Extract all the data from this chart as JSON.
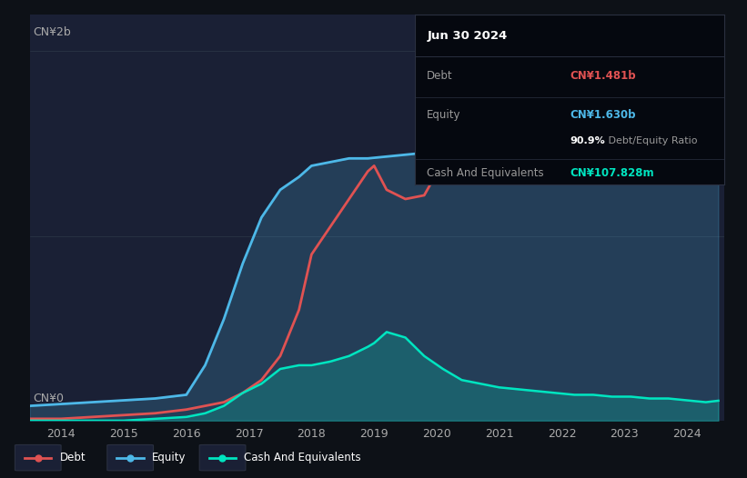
{
  "bg_color": "#0d1117",
  "plot_bg_color": "#1a2035",
  "debt_color": "#e05252",
  "equity_color": "#4db8e8",
  "cash_color": "#00e5c0",
  "debt_label": "Debt",
  "equity_label": "Equity",
  "cash_label": "Cash And Equivalents",
  "ylabel_top": "CN¥2b",
  "ylabel_bottom": "CN¥0",
  "info_box": {
    "date": "Jun 30 2024",
    "debt_val": "CN¥1.481b",
    "equity_val": "CN¥1.630b",
    "ratio_val": "90.9%",
    "ratio_label": " Debt/Equity Ratio",
    "cash_val": "CN¥107.828m"
  },
  "equity_data": {
    "x": [
      2013.5,
      2014.0,
      2014.5,
      2015.0,
      2015.5,
      2016.0,
      2016.3,
      2016.6,
      2016.9,
      2017.2,
      2017.5,
      2017.8,
      2018.0,
      2018.3,
      2018.6,
      2018.9,
      2019.2,
      2019.5,
      2019.8,
      2020.1,
      2020.4,
      2020.7,
      2021.0,
      2021.3,
      2021.6,
      2021.9,
      2022.2,
      2022.5,
      2022.8,
      2023.1,
      2023.4,
      2023.7,
      2024.0,
      2024.3,
      2024.5
    ],
    "y": [
      0.08,
      0.09,
      0.1,
      0.11,
      0.12,
      0.14,
      0.3,
      0.55,
      0.85,
      1.1,
      1.25,
      1.32,
      1.38,
      1.4,
      1.42,
      1.42,
      1.43,
      1.44,
      1.45,
      1.5,
      1.52,
      1.55,
      1.57,
      1.55,
      1.53,
      1.54,
      1.56,
      1.55,
      1.54,
      1.56,
      1.58,
      1.6,
      1.62,
      1.63,
      1.63
    ]
  },
  "debt_data": {
    "x": [
      2013.5,
      2014.0,
      2014.5,
      2015.0,
      2015.5,
      2016.0,
      2016.3,
      2016.6,
      2016.9,
      2017.2,
      2017.5,
      2017.8,
      2018.0,
      2018.3,
      2018.6,
      2018.9,
      2019.0,
      2019.2,
      2019.5,
      2019.8,
      2020.1,
      2020.4,
      2020.7,
      2021.0,
      2021.3,
      2021.6,
      2021.9,
      2022.2,
      2022.5,
      2022.8,
      2023.1,
      2023.4,
      2023.7,
      2024.0,
      2024.3,
      2024.5
    ],
    "y": [
      0.01,
      0.01,
      0.02,
      0.03,
      0.04,
      0.06,
      0.08,
      0.1,
      0.15,
      0.22,
      0.35,
      0.6,
      0.9,
      1.05,
      1.2,
      1.35,
      1.38,
      1.25,
      1.2,
      1.22,
      1.4,
      1.52,
      1.58,
      1.6,
      1.62,
      1.58,
      1.6,
      1.75,
      1.85,
      1.75,
      1.68,
      1.7,
      1.72,
      1.9,
      2.05,
      1.48
    ]
  },
  "cash_data": {
    "x": [
      2013.5,
      2014.0,
      2014.5,
      2015.0,
      2015.5,
      2016.0,
      2016.3,
      2016.6,
      2016.9,
      2017.2,
      2017.5,
      2017.8,
      2018.0,
      2018.3,
      2018.6,
      2018.9,
      2019.0,
      2019.2,
      2019.5,
      2019.8,
      2020.1,
      2020.4,
      2020.7,
      2021.0,
      2021.3,
      2021.6,
      2021.9,
      2022.2,
      2022.5,
      2022.8,
      2023.1,
      2023.4,
      2023.7,
      2024.0,
      2024.3,
      2024.5
    ],
    "y": [
      0.0,
      0.0,
      0.0,
      0.0,
      0.01,
      0.02,
      0.04,
      0.08,
      0.15,
      0.2,
      0.28,
      0.3,
      0.3,
      0.32,
      0.35,
      0.4,
      0.42,
      0.48,
      0.45,
      0.35,
      0.28,
      0.22,
      0.2,
      0.18,
      0.17,
      0.16,
      0.15,
      0.14,
      0.14,
      0.13,
      0.13,
      0.12,
      0.12,
      0.11,
      0.1,
      0.108
    ]
  },
  "xlim": [
    2013.5,
    2024.6
  ],
  "ylim": [
    0,
    2.2
  ],
  "xticks": [
    2014,
    2015,
    2016,
    2017,
    2018,
    2019,
    2020,
    2021,
    2022,
    2023,
    2024
  ]
}
